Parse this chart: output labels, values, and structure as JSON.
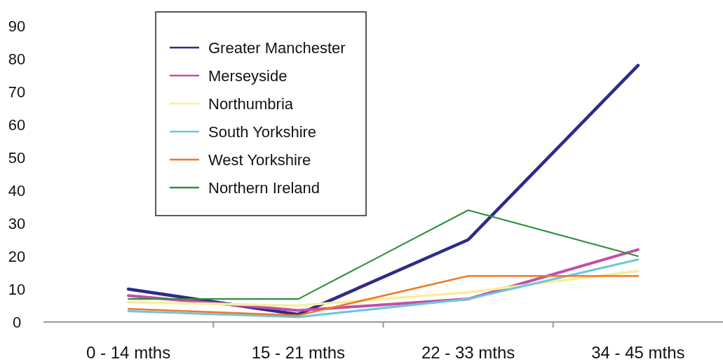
{
  "chart_data": {
    "type": "line",
    "categories": [
      "0 - 14 mths",
      "15 - 21 mths",
      "22 - 33 mths",
      "34 - 45 mths"
    ],
    "series": [
      {
        "name": "Greater Manchester",
        "color": "#2e2a8c",
        "values": [
          10,
          2.3,
          25,
          78
        ]
      },
      {
        "name": "Merseyside",
        "color": "#c24fa8",
        "values": [
          8,
          3.5,
          7,
          22
        ]
      },
      {
        "name": "Northumbria",
        "color": "#f7eea0",
        "values": [
          6,
          5,
          9,
          15.5
        ]
      },
      {
        "name": "South Yorkshire",
        "color": "#6cc6e0",
        "values": [
          3.3,
          1.5,
          7,
          19
        ]
      },
      {
        "name": "West Yorkshire",
        "color": "#ef7a22",
        "values": [
          4,
          2,
          14,
          14
        ]
      },
      {
        "name": "Northern Ireland",
        "color": "#2f8f3a",
        "values": [
          7,
          7,
          34,
          20
        ]
      }
    ],
    "ylim": [
      0,
      90
    ],
    "yticks": [
      0,
      10,
      20,
      30,
      40,
      50,
      60,
      70,
      80,
      90
    ],
    "grid": false,
    "legend": "top left",
    "marker": "none",
    "line_style": "solid"
  }
}
